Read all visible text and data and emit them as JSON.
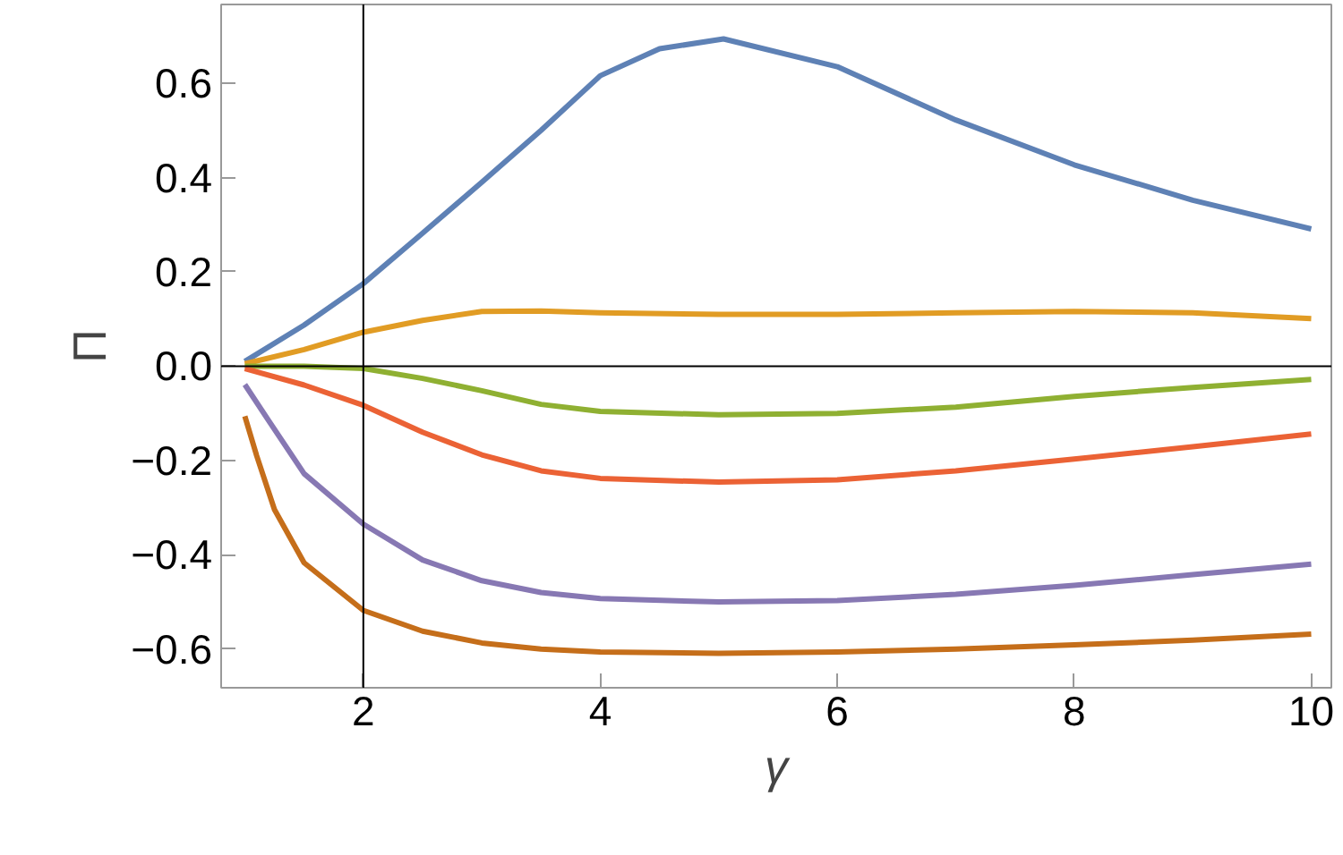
{
  "chart_data": {
    "type": "line",
    "xlabel": "γ",
    "ylabel": "Π",
    "xlim": [
      0.8,
      10.17
    ],
    "ylim": [
      -0.682,
      0.767
    ],
    "xticks": [
      2,
      4,
      6,
      8,
      10
    ],
    "yticks": [
      {
        "value": -0.6,
        "label": "−0.6"
      },
      {
        "value": -0.4,
        "label": "−0.4"
      },
      {
        "value": -0.2,
        "label": "−0.2"
      },
      {
        "value": 0,
        "label": "0.0"
      },
      {
        "value": 0.2,
        "label": "0.2"
      },
      {
        "value": 0.4,
        "label": "0.4"
      },
      {
        "value": 0.6,
        "label": "0.6"
      }
    ],
    "line_style": "solid",
    "ref_lines": [
      {
        "axis": "x",
        "value": 2,
        "color": "#000000"
      },
      {
        "axis": "y",
        "value": 0,
        "color": "#000000"
      }
    ],
    "series": [
      {
        "color": "#5e81b5",
        "x": [
          1,
          1.5,
          2,
          2.5,
          3,
          3.5,
          4,
          4.5,
          5.04,
          6,
          7,
          8,
          9,
          10
        ],
        "values": [
          0.01,
          0.087,
          0.175,
          0.282,
          0.39,
          0.5,
          0.616,
          0.673,
          0.694,
          0.635,
          0.522,
          0.427,
          0.352,
          0.291
        ]
      },
      {
        "color": "#e19c24",
        "x": [
          1,
          1.5,
          2,
          2.5,
          3,
          3.5,
          4,
          5,
          6,
          7,
          8,
          9,
          10
        ],
        "values": [
          0.005,
          0.035,
          0.072,
          0.097,
          0.116,
          0.117,
          0.113,
          0.11,
          0.11,
          0.113,
          0.116,
          0.113,
          0.101
        ]
      },
      {
        "color": "#8fb032",
        "x": [
          1,
          1.5,
          2,
          2.5,
          3,
          3.5,
          4,
          5,
          6,
          7,
          8,
          9,
          10
        ],
        "values": [
          0,
          0,
          -0.005,
          -0.026,
          -0.052,
          -0.081,
          -0.096,
          -0.103,
          -0.1,
          -0.087,
          -0.064,
          -0.045,
          -0.028
        ]
      },
      {
        "color": "#eb6235",
        "x": [
          1,
          1.5,
          2,
          2.5,
          3,
          3.5,
          4,
          5,
          6,
          7,
          8,
          9,
          10
        ],
        "values": [
          -0.005,
          -0.04,
          -0.083,
          -0.14,
          -0.188,
          -0.222,
          -0.238,
          -0.246,
          -0.241,
          -0.222,
          -0.197,
          -0.171,
          -0.144
        ]
      },
      {
        "color": "#8778b3",
        "x": [
          1,
          1.2,
          1.5,
          2,
          2.5,
          3,
          3.5,
          4,
          5,
          6,
          7,
          8,
          9,
          10
        ],
        "values": [
          -0.039,
          -0.115,
          -0.228,
          -0.335,
          -0.411,
          -0.455,
          -0.48,
          -0.493,
          -0.5,
          -0.497,
          -0.484,
          -0.465,
          -0.442,
          -0.42
        ]
      },
      {
        "color": "#c56e1a",
        "x": [
          1,
          1.1,
          1.25,
          1.5,
          2,
          2.5,
          3,
          3.5,
          4,
          5,
          6,
          7,
          8,
          9,
          10
        ],
        "values": [
          -0.106,
          -0.19,
          -0.304,
          -0.417,
          -0.518,
          -0.562,
          -0.587,
          -0.6,
          -0.606,
          -0.609,
          -0.606,
          -0.6,
          -0.591,
          -0.581,
          -0.568
        ]
      }
    ]
  }
}
